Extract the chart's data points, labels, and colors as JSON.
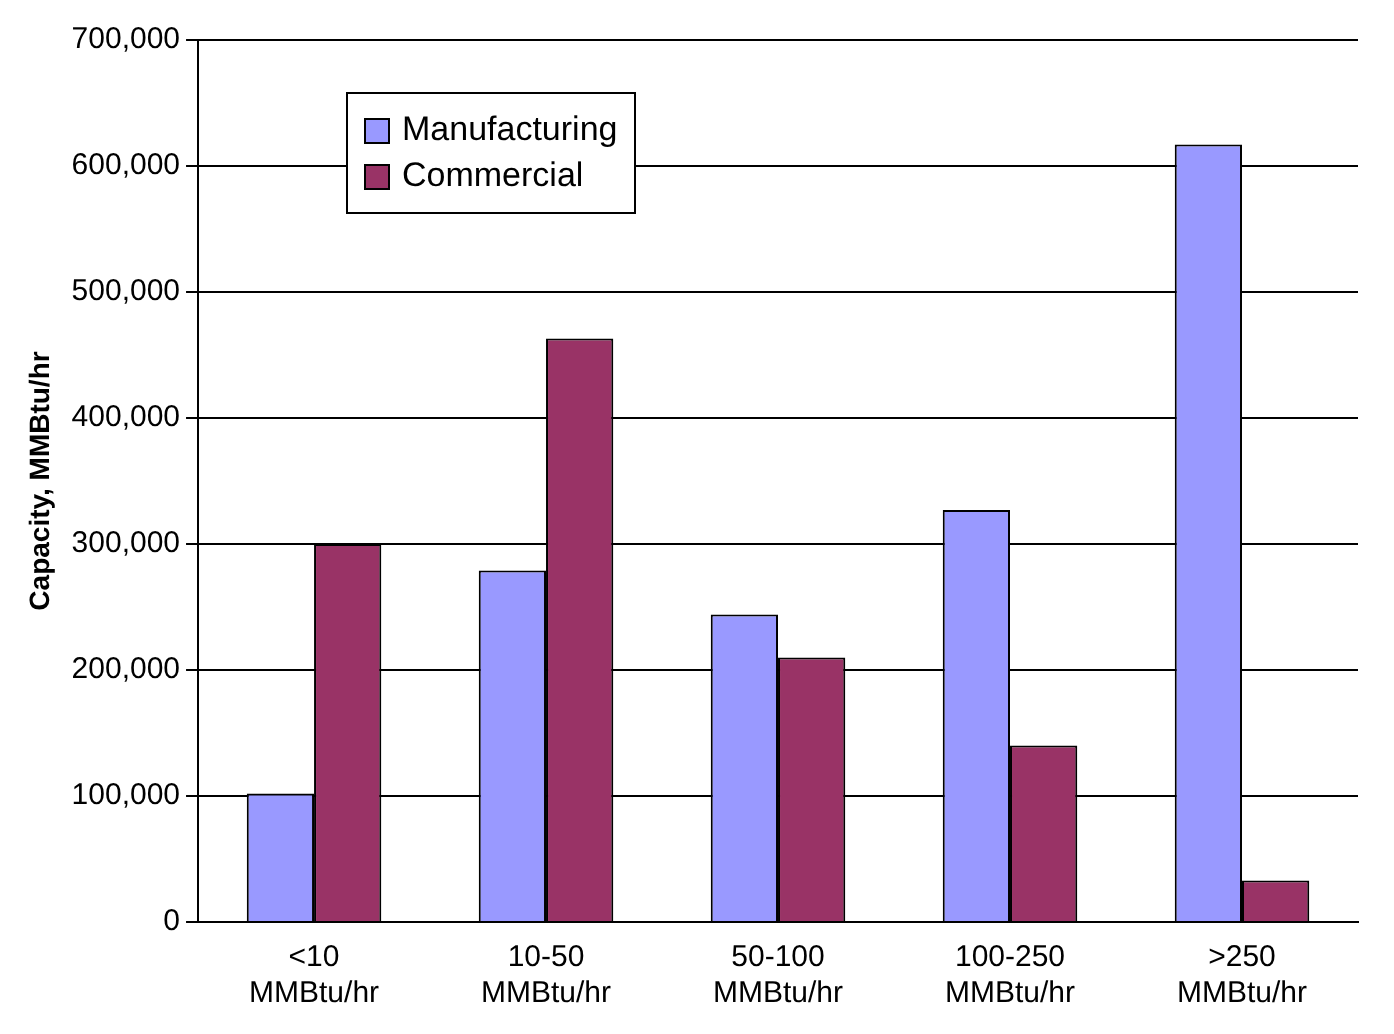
{
  "chart_data": {
    "type": "bar",
    "ylabel": "Capacity, MMBtu/hr",
    "categories": [
      "<10 MMBtu/hr",
      "10-50 MMBtu/hr",
      "50-100 MMBtu/hr",
      "100-250 MMBtu/hr",
      ">250 MMBtu/hr"
    ],
    "series": [
      {
        "name": "Manufacturing",
        "color": "#9999ff",
        "values": [
          102000,
          279000,
          244000,
          327000,
          617000
        ]
      },
      {
        "name": "Commercial",
        "color": "#993366",
        "values": [
          300000,
          463000,
          210000,
          140000,
          33000
        ]
      }
    ],
    "ylim": [
      0,
      700000
    ],
    "yticks": [
      0,
      {
        "value": 100000,
        "label": "100,000"
      },
      {
        "value": 200000,
        "label": "200,000"
      },
      {
        "value": 300000,
        "label": "300,000"
      },
      {
        "value": 400000,
        "label": "400,000"
      },
      {
        "value": 500000,
        "label": "500,000"
      },
      {
        "value": 600000,
        "label": "600,000"
      },
      {
        "value": 700000,
        "label": "700,000"
      }
    ],
    "grid": "y",
    "legend": "top left"
  }
}
